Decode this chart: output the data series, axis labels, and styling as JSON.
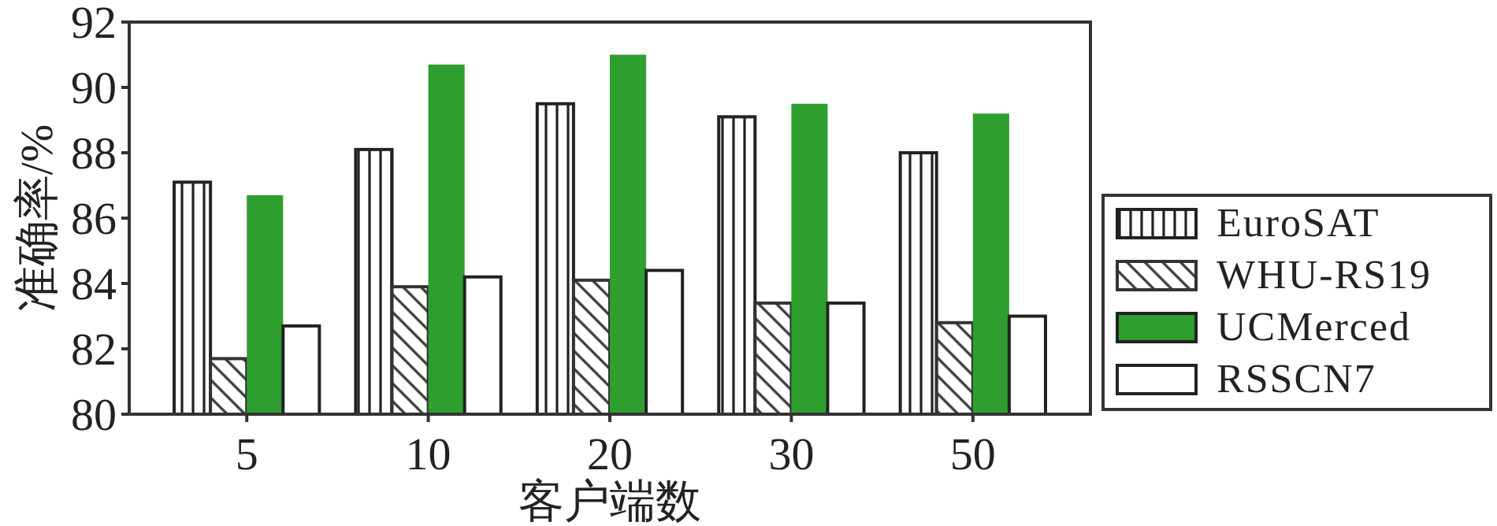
{
  "chart_data": {
    "type": "bar",
    "xlabel": "客户端数",
    "ylabel": "准确率/%",
    "categories": [
      "5",
      "10",
      "20",
      "30",
      "50"
    ],
    "series": [
      {
        "name": "EuroSAT",
        "color": "#222222",
        "values": [
          87.1,
          88.1,
          89.5,
          89.1,
          88.0
        ]
      },
      {
        "name": "WHU-RS19",
        "color": "#333333",
        "values": [
          81.7,
          83.9,
          84.1,
          83.4,
          82.8
        ]
      },
      {
        "name": "UCMerced",
        "color": "#2e9e2e",
        "values": [
          86.7,
          90.7,
          91.0,
          89.5,
          89.2
        ]
      },
      {
        "name": "RSSCN7",
        "color": "#ffffff",
        "values": [
          82.7,
          84.2,
          84.4,
          83.4,
          83.0
        ]
      }
    ],
    "ylim": [
      80,
      92
    ],
    "yticks": [
      80,
      82,
      84,
      86,
      88,
      90,
      92
    ],
    "legend": "right",
    "grid": false
  }
}
